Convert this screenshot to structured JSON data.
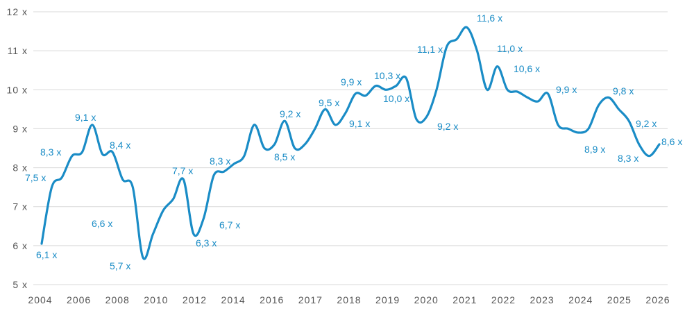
{
  "chart_data": {
    "type": "line",
    "title": "",
    "xlabel": "",
    "ylabel": "",
    "ylim": [
      5,
      12
    ],
    "grid": true,
    "color": "#1a8cc6",
    "x_tick_labels": [
      "2004",
      "2006",
      "2008",
      "2010",
      "2012",
      "2014",
      "2016",
      "2017",
      "2018",
      "2019",
      "2020",
      "2021",
      "2022",
      "2023",
      "2024",
      "2025",
      "2026"
    ],
    "y_tick_labels": [
      "5 x",
      "6 x",
      "7 x",
      "8 x",
      "9 x",
      "10 x",
      "11 x",
      "12 x"
    ],
    "series": [
      {
        "values": [
          6.05,
          7.5,
          7.75,
          8.3,
          8.4,
          9.1,
          8.35,
          8.4,
          7.7,
          7.5,
          5.7,
          6.3,
          6.9,
          7.2,
          7.7,
          6.3,
          6.7,
          7.8,
          7.9,
          8.1,
          8.3,
          9.1,
          8.5,
          8.6,
          9.2,
          8.5,
          8.6,
          9.0,
          9.5,
          9.1,
          9.4,
          9.9,
          9.85,
          10.1,
          10.0,
          10.1,
          10.3,
          9.25,
          9.3,
          10.0,
          11.1,
          11.3,
          11.6,
          11.0,
          10.0,
          10.6,
          10.0,
          9.95,
          9.8,
          9.7,
          9.9,
          9.1,
          9.0,
          8.9,
          9.0,
          9.6,
          9.8,
          9.5,
          9.2,
          8.6,
          8.3,
          8.6
        ]
      }
    ],
    "data_labels": [
      "6,1 x",
      "7,5 x",
      "8,3 x",
      "9,1 x",
      "8,4 x",
      "6,6 x",
      "5,7 x",
      "7,7 x",
      "6,3 x",
      "6,7 x",
      "8,3 x",
      "9,2 x",
      "8,5 x",
      "9,5 x",
      "9,1 x",
      "9,9 x",
      "10,3 x",
      "10,0 x",
      "11,1 x",
      "9,2 x",
      "11,6 x",
      "11,0 x",
      "10,6 x",
      "9,9 x",
      "8,9 x",
      "9,8 x",
      "8,3 x",
      "9,2 x",
      "8,6 x"
    ]
  }
}
